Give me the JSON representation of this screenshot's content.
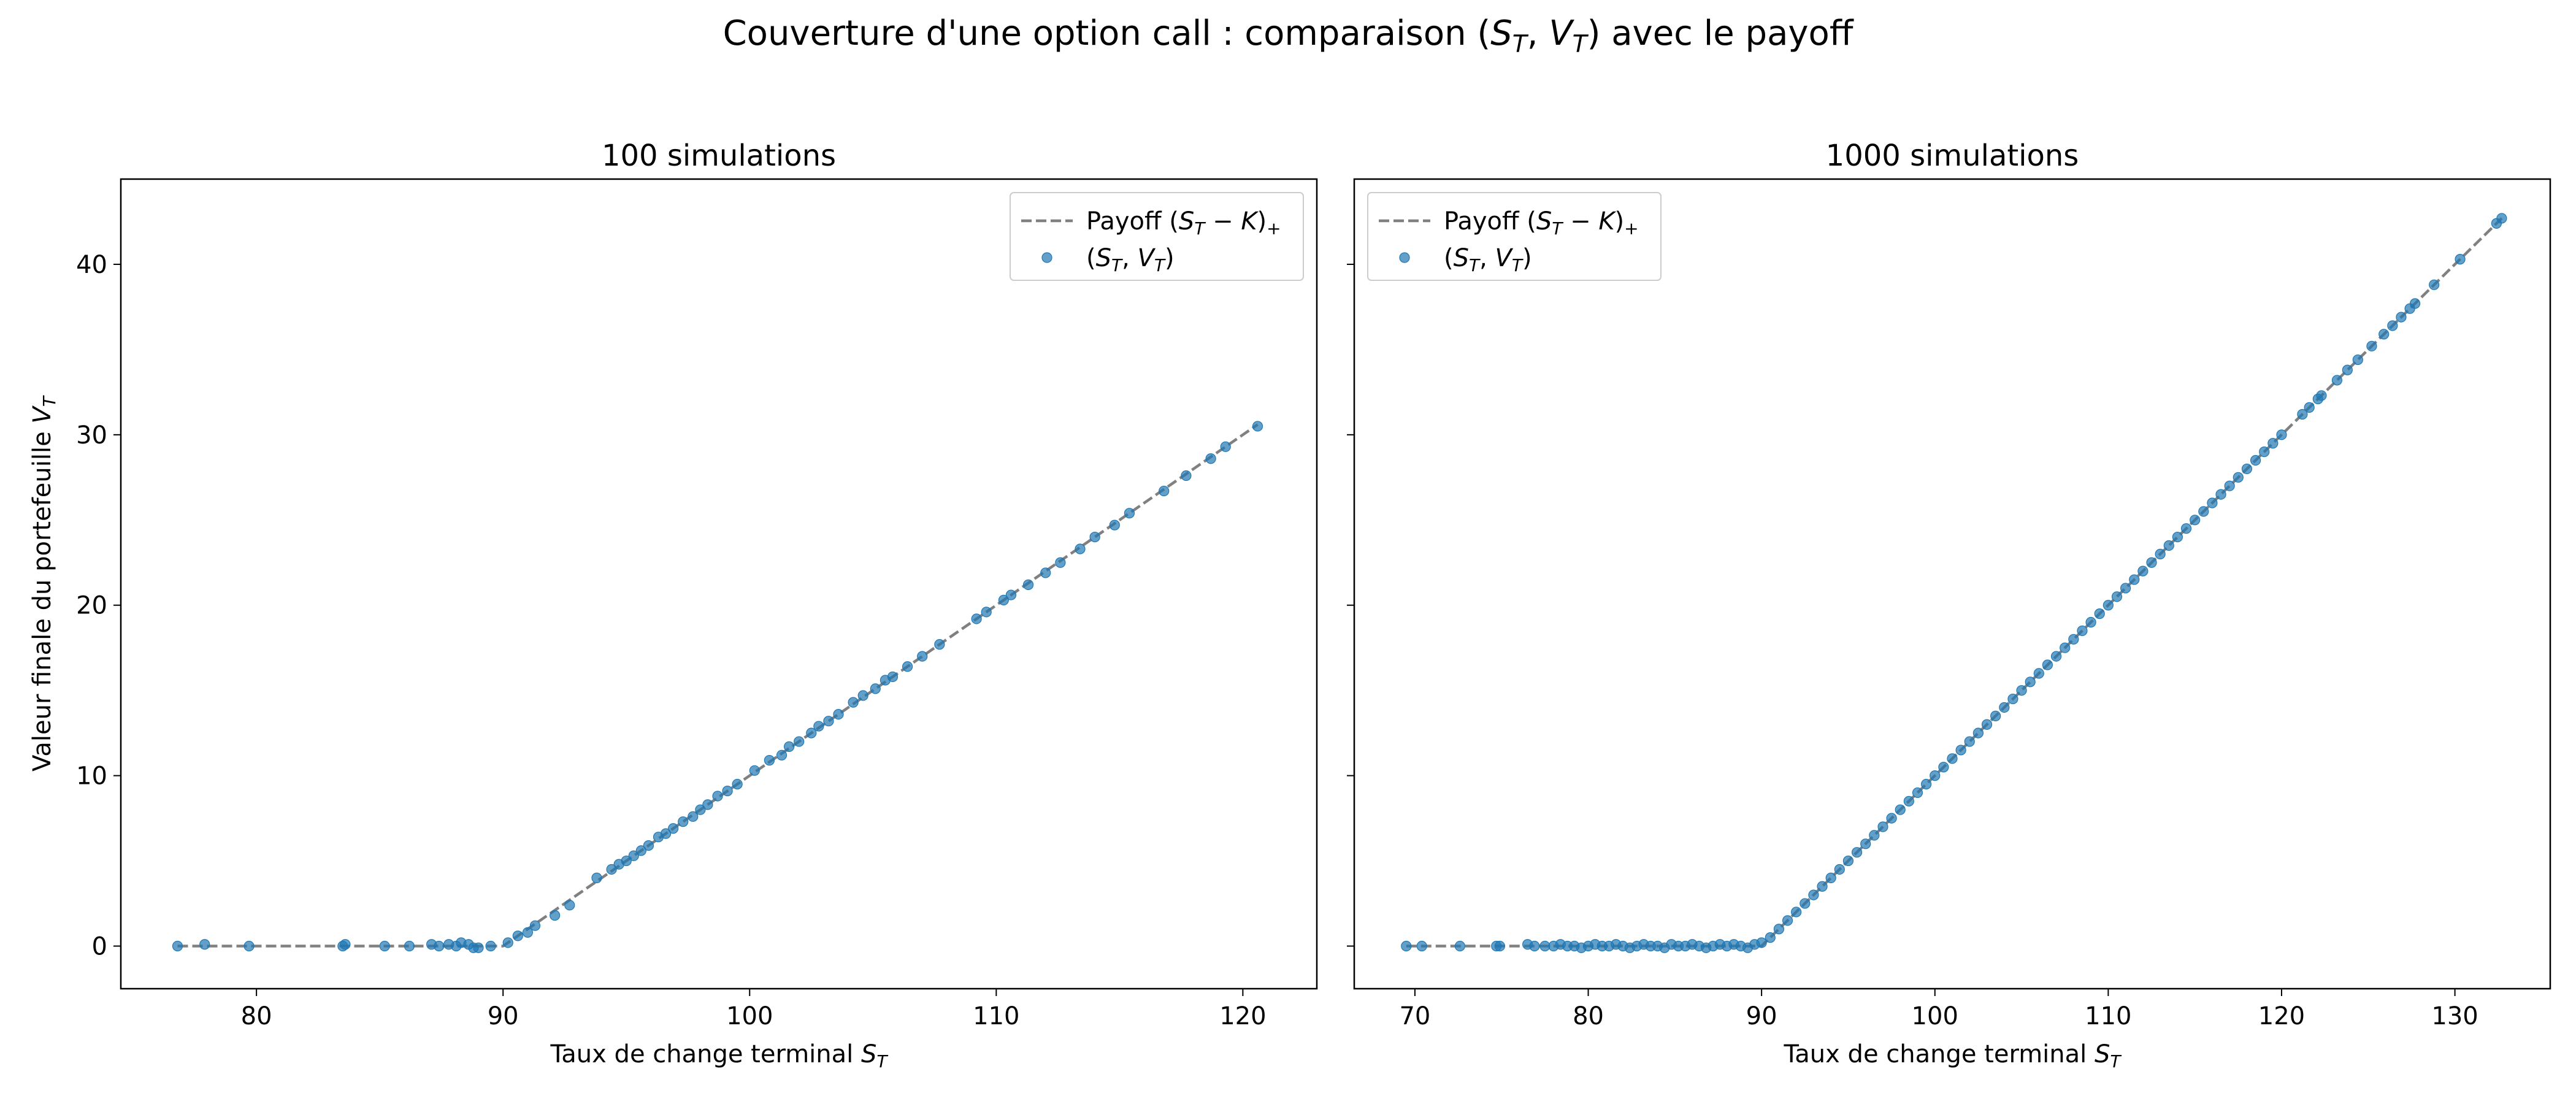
{
  "figure": {
    "title_prefix": "Couverture d'une option call : comparaison (",
    "title_math_1": "S",
    "title_sub_1": "T",
    "title_sep": ", ",
    "title_math_2": "V",
    "title_sub_2": "T",
    "title_suffix": ") avec le payoff"
  },
  "colors": {
    "scatter": "#1f77b4",
    "payoff_line": "#808080",
    "axes": "#000000",
    "legend_border": "#cccccc"
  },
  "chart_data": [
    {
      "type": "scatter",
      "title": "100 simulations",
      "xlabel": "Taux de change terminal",
      "xlabel_math": "S",
      "xlabel_sub": "T",
      "ylabel": "Valeur finale du portefeuille",
      "ylabel_math": "V",
      "ylabel_sub": "T",
      "xlim": [
        74.5,
        123
      ],
      "ylim": [
        -2.5,
        45
      ],
      "xticks": [
        80,
        90,
        100,
        110,
        120
      ],
      "yticks": [
        0,
        10,
        20,
        30,
        40
      ],
      "grid": false,
      "legend_position": "upper right",
      "strike": 90,
      "series": [
        {
          "name": "Payoff (S_T − K)_+",
          "kind": "line",
          "style": "dashed",
          "x": [
            76.8,
            90,
            120.6
          ],
          "y": [
            0,
            0,
            30.6
          ]
        },
        {
          "name": "(S_T, V_T)",
          "kind": "scatter",
          "x": [
            76.8,
            77.9,
            79.7,
            83.5,
            83.6,
            85.2,
            86.2,
            87.1,
            87.4,
            87.8,
            88.1,
            88.3,
            88.6,
            88.8,
            89.0,
            89.5,
            90.2,
            90.6,
            91.0,
            91.3,
            92.1,
            92.7,
            93.8,
            94.4,
            94.7,
            95.0,
            95.3,
            95.6,
            95.9,
            96.3,
            96.6,
            96.9,
            97.3,
            97.7,
            98.0,
            98.3,
            98.7,
            99.1,
            99.5,
            100.2,
            100.8,
            101.3,
            101.6,
            102.0,
            102.5,
            102.8,
            103.2,
            103.6,
            104.2,
            104.6,
            105.1,
            105.5,
            105.8,
            106.4,
            107.0,
            107.7,
            109.2,
            109.6,
            110.3,
            110.6,
            111.3,
            112.0,
            112.6,
            113.4,
            114.0,
            114.8,
            115.4,
            116.8,
            117.7,
            118.7,
            119.3,
            120.6
          ],
          "y": [
            0.0,
            0.1,
            0.0,
            0.0,
            0.1,
            0.0,
            0.0,
            0.1,
            0.0,
            0.1,
            0.0,
            0.2,
            0.1,
            -0.1,
            -0.1,
            0.0,
            0.2,
            0.6,
            0.8,
            1.2,
            1.8,
            2.4,
            4.0,
            4.5,
            4.8,
            5.0,
            5.3,
            5.6,
            5.9,
            6.4,
            6.6,
            6.9,
            7.3,
            7.6,
            8.0,
            8.3,
            8.8,
            9.1,
            9.5,
            10.3,
            10.9,
            11.2,
            11.7,
            12.0,
            12.5,
            12.9,
            13.2,
            13.6,
            14.3,
            14.7,
            15.1,
            15.6,
            15.8,
            16.4,
            17.0,
            17.7,
            19.2,
            19.6,
            20.3,
            20.6,
            21.2,
            21.9,
            22.5,
            23.3,
            24.0,
            24.7,
            25.4,
            26.7,
            27.6,
            28.6,
            29.3,
            30.5
          ]
        }
      ]
    },
    {
      "type": "scatter",
      "title": "1000 simulations",
      "xlabel": "Taux de change terminal",
      "xlabel_math": "S",
      "xlabel_sub": "T",
      "xlim": [
        66.5,
        135.5
      ],
      "ylim": [
        -2.5,
        45
      ],
      "xticks": [
        70,
        80,
        90,
        100,
        110,
        120,
        130
      ],
      "yticks": [
        0,
        10,
        20,
        30,
        40
      ],
      "grid": false,
      "legend_position": "upper left",
      "strike": 90,
      "series": [
        {
          "name": "Payoff (S_T − K)_+",
          "kind": "line",
          "style": "dashed",
          "x": [
            69.5,
            90,
            132.7
          ],
          "y": [
            0,
            0,
            42.7
          ]
        },
        {
          "name": "(S_T, V_T)",
          "kind": "scatter",
          "x": [
            69.5,
            70.4,
            72.6,
            74.7,
            74.9,
            76.5,
            76.9,
            77.5,
            78.0,
            78.4,
            78.8,
            79.2,
            79.6,
            80.0,
            80.4,
            80.8,
            81.2,
            81.6,
            82.0,
            82.4,
            82.8,
            83.2,
            83.6,
            84.0,
            84.4,
            84.8,
            85.2,
            85.6,
            86.0,
            86.4,
            86.8,
            87.2,
            87.6,
            88.0,
            88.4,
            88.8,
            89.2,
            89.6,
            90.0,
            90.5,
            91.0,
            91.5,
            92.0,
            92.5,
            93.0,
            93.5,
            94.0,
            94.5,
            95.0,
            95.5,
            96.0,
            96.5,
            97.0,
            97.5,
            98.0,
            98.5,
            99.0,
            99.5,
            100.0,
            100.5,
            101.0,
            101.5,
            102.0,
            102.5,
            103.0,
            103.5,
            104.0,
            104.5,
            105.0,
            105.5,
            106.0,
            106.5,
            107.0,
            107.5,
            108.0,
            108.5,
            109.0,
            109.5,
            110.0,
            110.5,
            111.0,
            111.5,
            112.0,
            112.5,
            113.0,
            113.5,
            114.0,
            114.5,
            115.0,
            115.5,
            116.0,
            116.5,
            117.0,
            117.5,
            118.0,
            118.5,
            119.0,
            119.5,
            120.0,
            121.2,
            121.6,
            122.1,
            122.3,
            123.2,
            123.8,
            124.4,
            125.2,
            125.9,
            126.4,
            126.9,
            127.4,
            127.7,
            128.8,
            130.3,
            132.4,
            132.7
          ],
          "y": [
            0.0,
            0.0,
            0.0,
            0.0,
            0.0,
            0.1,
            0.0,
            0.0,
            0.0,
            0.1,
            0.0,
            0.0,
            -0.1,
            0.0,
            0.1,
            0.0,
            0.0,
            0.1,
            0.0,
            -0.1,
            0.0,
            0.1,
            0.0,
            0.0,
            -0.1,
            0.1,
            0.0,
            0.0,
            0.1,
            0.0,
            -0.1,
            0.0,
            0.1,
            0.0,
            0.1,
            0.0,
            -0.1,
            0.1,
            0.2,
            0.5,
            1.0,
            1.5,
            2.0,
            2.5,
            3.0,
            3.5,
            4.0,
            4.5,
            5.0,
            5.5,
            6.0,
            6.5,
            7.0,
            7.5,
            8.0,
            8.5,
            9.0,
            9.5,
            10.0,
            10.5,
            11.0,
            11.5,
            12.0,
            12.5,
            13.0,
            13.5,
            14.0,
            14.5,
            15.0,
            15.5,
            16.0,
            16.5,
            17.0,
            17.5,
            18.0,
            18.5,
            19.0,
            19.5,
            20.0,
            20.5,
            21.0,
            21.5,
            22.0,
            22.5,
            23.0,
            23.5,
            24.0,
            24.5,
            25.0,
            25.5,
            26.0,
            26.5,
            27.0,
            27.5,
            28.0,
            28.5,
            29.0,
            29.5,
            30.0,
            31.2,
            31.6,
            32.1,
            32.3,
            33.2,
            33.8,
            34.4,
            35.2,
            35.9,
            36.4,
            36.9,
            37.4,
            37.7,
            38.8,
            40.3,
            42.4,
            42.7
          ]
        }
      ]
    }
  ]
}
